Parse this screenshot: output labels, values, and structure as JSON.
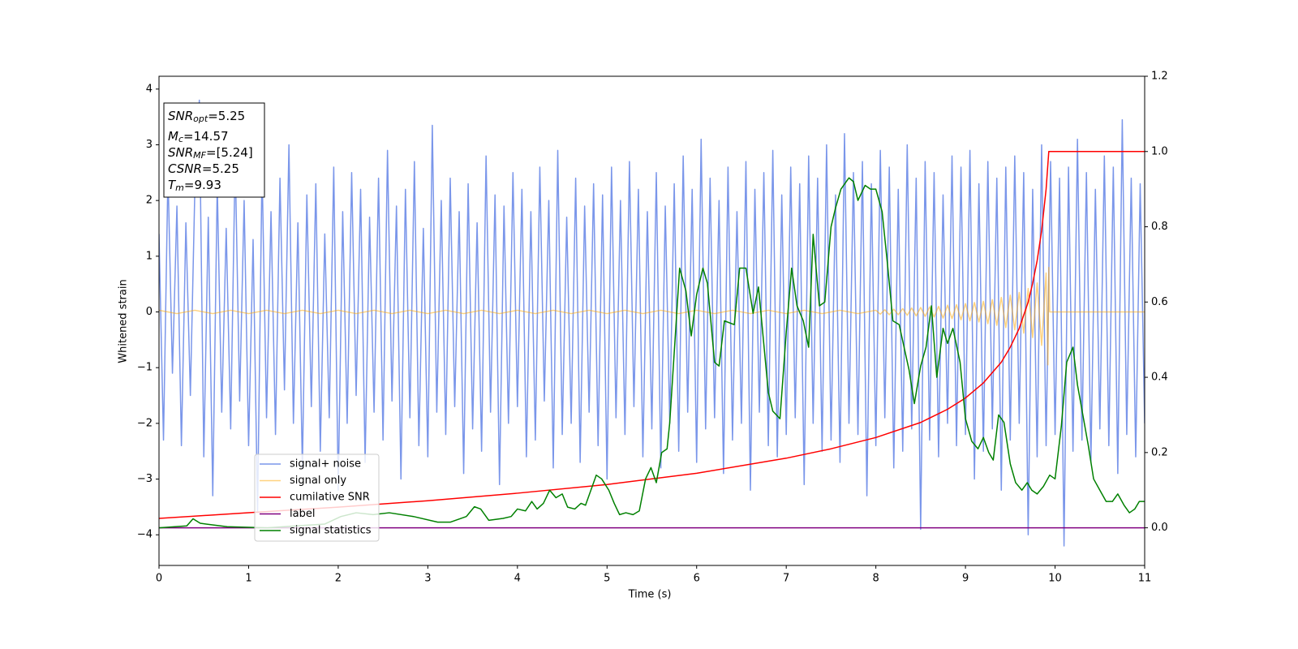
{
  "chart_data": {
    "type": "line",
    "xlabel": "Time (s)",
    "ylabel": "Whitened strain",
    "xlim": [
      0,
      11
    ],
    "xticks": [
      0,
      1,
      2,
      3,
      4,
      5,
      6,
      7,
      8,
      9,
      10,
      11
    ],
    "ylim": [
      -4.55,
      4.23
    ],
    "yticks": [
      {
        "value": -4,
        "label": "−4"
      },
      {
        "value": -3,
        "label": "−3"
      },
      {
        "value": -2,
        "label": "−2"
      },
      {
        "value": -1,
        "label": "−1"
      },
      0,
      1,
      2,
      3,
      4
    ],
    "y2lim": [
      -0.1,
      1.2
    ],
    "y2ticks": [
      {
        "value": 0,
        "label": "0.0"
      },
      0.2,
      0.4,
      0.6,
      0.8,
      {
        "value": 1,
        "label": "1.0"
      },
      1.2
    ],
    "legend": "lower left",
    "annotation": [
      {
        "text": "SNR",
        "sub": "opt",
        "rest": "=5.25"
      },
      {
        "text": "M",
        "sub": "c",
        "rest": "=14.57"
      },
      {
        "text": "SNR",
        "sub": "MF",
        "rest": "=[5.24]"
      },
      {
        "text": "CSNR",
        "rest": "=5.25"
      },
      {
        "text": "T",
        "sub": "m",
        "rest": "=9.93"
      }
    ],
    "series": [
      {
        "name": "signal+ noise",
        "color": "#4169e1",
        "alpha": 0.7,
        "x": [
          0,
          0.05,
          0.1,
          0.15,
          0.2,
          0.25,
          0.3,
          0.35,
          0.4,
          0.45,
          0.5,
          0.55,
          0.6,
          0.65,
          0.7,
          0.75,
          0.8,
          0.85,
          0.9,
          0.95,
          1,
          1.05,
          1.1,
          1.15,
          1.2,
          1.25,
          1.3,
          1.35,
          1.4,
          1.45,
          1.5,
          1.55,
          1.6,
          1.65,
          1.7,
          1.75,
          1.8,
          1.85,
          1.9,
          1.95,
          2,
          2.05,
          2.1,
          2.15,
          2.2,
          2.25,
          2.3,
          2.35,
          2.4,
          2.45,
          2.5,
          2.55,
          2.6,
          2.65,
          2.7,
          2.75,
          2.8,
          2.85,
          2.9,
          2.95,
          3,
          3.05,
          3.1,
          3.15,
          3.2,
          3.25,
          3.3,
          3.35,
          3.4,
          3.45,
          3.5,
          3.55,
          3.6,
          3.65,
          3.7,
          3.75,
          3.8,
          3.85,
          3.9,
          3.95,
          4,
          4.05,
          4.1,
          4.15,
          4.2,
          4.25,
          4.3,
          4.35,
          4.4,
          4.45,
          4.5,
          4.55,
          4.6,
          4.65,
          4.7,
          4.75,
          4.8,
          4.85,
          4.9,
          4.95,
          5,
          5.05,
          5.1,
          5.15,
          5.2,
          5.25,
          5.3,
          5.35,
          5.4,
          5.45,
          5.5,
          5.55,
          5.6,
          5.65,
          5.7,
          5.75,
          5.8,
          5.85,
          5.9,
          5.95,
          6,
          6.05,
          6.1,
          6.15,
          6.2,
          6.25,
          6.3,
          6.35,
          6.4,
          6.45,
          6.5,
          6.55,
          6.6,
          6.65,
          6.7,
          6.75,
          6.8,
          6.85,
          6.9,
          6.95,
          7,
          7.05,
          7.1,
          7.15,
          7.2,
          7.25,
          7.3,
          7.35,
          7.4,
          7.45,
          7.5,
          7.55,
          7.6,
          7.65,
          7.7,
          7.75,
          7.8,
          7.85,
          7.9,
          7.95,
          8,
          8.05,
          8.1,
          8.15,
          8.2,
          8.25,
          8.3,
          8.35,
          8.4,
          8.45,
          8.5,
          8.55,
          8.6,
          8.65,
          8.7,
          8.75,
          8.8,
          8.85,
          8.9,
          8.95,
          9,
          9.05,
          9.1,
          9.15,
          9.2,
          9.25,
          9.3,
          9.35,
          9.4,
          9.45,
          9.5,
          9.55,
          9.6,
          9.65,
          9.7,
          9.75,
          9.8,
          9.85,
          9.9,
          9.95,
          10,
          10.05,
          10.1,
          10.15,
          10.2,
          10.25,
          10.3,
          10.35,
          10.4,
          10.45,
          10.5,
          10.55,
          10.6,
          10.65,
          10.7,
          10.75,
          10.8,
          10.85,
          10.9,
          10.95,
          11
        ],
        "values": [
          1.4,
          -2.3,
          2.5,
          -1.1,
          1.9,
          -2.4,
          1.6,
          -1.5,
          2.2,
          3.8,
          -2.6,
          1.7,
          -3.3,
          2.3,
          -1.8,
          1.5,
          -2.1,
          2.8,
          -1.6,
          2.0,
          -2.4,
          1.3,
          -3.6,
          2.6,
          -1.9,
          1.8,
          -2.2,
          2.4,
          -1.4,
          3.0,
          -2.0,
          1.6,
          -2.8,
          2.1,
          -1.7,
          2.3,
          -2.5,
          1.4,
          -1.9,
          2.6,
          -3.2,
          1.8,
          -2.0,
          2.5,
          -1.5,
          2.2,
          -2.7,
          1.7,
          -1.8,
          2.4,
          -2.3,
          2.9,
          -1.6,
          1.9,
          -3.0,
          2.2,
          -1.9,
          2.7,
          -2.4,
          1.5,
          -2.6,
          3.35,
          -1.8,
          2.0,
          -2.2,
          2.4,
          -1.7,
          1.8,
          -2.9,
          2.3,
          -2.1,
          1.6,
          -2.5,
          2.8,
          -1.8,
          2.1,
          -3.1,
          1.9,
          -2.0,
          2.5,
          -1.7,
          2.2,
          -2.6,
          1.8,
          -2.3,
          2.6,
          -1.6,
          2.0,
          -2.8,
          2.9,
          -2.2,
          1.7,
          -2.0,
          2.4,
          -2.7,
          1.9,
          -1.8,
          2.3,
          -2.4,
          2.1,
          -3.0,
          2.6,
          -1.9,
          2.0,
          -2.2,
          2.7,
          -1.7,
          2.2,
          -2.6,
          1.8,
          -2.1,
          2.5,
          -2.8,
          1.9,
          -2.0,
          2.3,
          -2.5,
          2.8,
          -1.8,
          2.2,
          -2.7,
          3.1,
          -2.1,
          2.4,
          -1.9,
          2.0,
          -2.9,
          2.6,
          -2.3,
          1.8,
          -2.0,
          2.7,
          -3.2,
          2.2,
          -1.8,
          2.5,
          -2.4,
          2.9,
          -2.6,
          2.1,
          -2.2,
          2.6,
          -1.9,
          2.3,
          -3.1,
          2.8,
          -2.0,
          2.4,
          -2.5,
          3.0,
          -2.3,
          2.1,
          -2.7,
          3.2,
          -2.0,
          2.5,
          -2.2,
          2.7,
          -3.3,
          2.3,
          -2.4,
          2.9,
          -1.9,
          2.6,
          -2.8,
          2.2,
          -2.5,
          3.0,
          -2.1,
          2.4,
          -3.9,
          2.7,
          -2.3,
          2.5,
          -2.6,
          2.1,
          -2.0,
          2.8,
          -2.4,
          2.6,
          -2.2,
          2.9,
          -3.0,
          2.3,
          -2.5,
          2.7,
          -2.1,
          2.4,
          -3.2,
          2.6,
          -2.3,
          2.8,
          -2.0,
          2.5,
          -4.0,
          2.2,
          -2.6,
          3.0,
          -2.4,
          2.7,
          -2.2,
          2.4,
          -4.2,
          2.6,
          -2.5,
          3.1,
          -2.3,
          2.5,
          -2.7,
          2.2,
          -2.1,
          2.8,
          -2.4,
          2.6,
          -2.9,
          3.45,
          -2.2,
          2.4,
          -2.6,
          2.3,
          -2.0
        ]
      },
      {
        "name": "signal only",
        "color": "orange",
        "alpha": 0.5,
        "x": [
          0,
          0.2,
          0.4,
          0.6,
          0.8,
          1,
          1.2,
          1.4,
          1.6,
          1.8,
          2,
          2.2,
          2.4,
          2.6,
          2.8,
          3,
          3.2,
          3.4,
          3.6,
          3.8,
          4,
          4.2,
          4.4,
          4.6,
          4.8,
          5,
          5.2,
          5.4,
          5.6,
          5.8,
          6,
          6.2,
          6.4,
          6.6,
          6.8,
          7,
          7.2,
          7.4,
          7.6,
          7.8,
          8,
          8.05,
          8.1,
          8.15,
          8.2,
          8.25,
          8.3,
          8.35,
          8.4,
          8.45,
          8.5,
          8.55,
          8.6,
          8.65,
          8.7,
          8.75,
          8.8,
          8.85,
          8.9,
          8.95,
          9,
          9.05,
          9.1,
          9.15,
          9.2,
          9.25,
          9.3,
          9.35,
          9.4,
          9.45,
          9.5,
          9.55,
          9.6,
          9.65,
          9.7,
          9.75,
          9.8,
          9.85,
          9.9,
          9.92,
          9.93,
          9.94,
          11
        ],
        "values": [
          0.03,
          -0.03,
          0.03,
          -0.03,
          0.03,
          -0.03,
          0.03,
          -0.03,
          0.03,
          -0.03,
          0.03,
          -0.03,
          0.03,
          -0.03,
          0.03,
          -0.03,
          0.03,
          -0.03,
          0.03,
          -0.03,
          0.03,
          -0.03,
          0.03,
          -0.03,
          0.03,
          -0.03,
          0.03,
          -0.03,
          0.03,
          -0.03,
          0.03,
          -0.03,
          0.03,
          -0.03,
          0.03,
          -0.03,
          0.03,
          -0.03,
          0.03,
          -0.03,
          0.03,
          -0.04,
          0.04,
          -0.05,
          0.05,
          -0.05,
          0.06,
          -0.06,
          0.07,
          -0.07,
          0.08,
          -0.08,
          0.09,
          -0.09,
          0.1,
          -0.11,
          0.12,
          -0.12,
          0.13,
          -0.14,
          0.15,
          -0.16,
          0.17,
          -0.18,
          0.19,
          -0.21,
          0.22,
          -0.24,
          0.26,
          -0.28,
          0.3,
          -0.32,
          0.35,
          -0.38,
          0.42,
          -0.46,
          0.52,
          -0.6,
          0.7,
          -0.95,
          0.8,
          0,
          0
        ]
      },
      {
        "name": "cumilative SNR",
        "color": "red",
        "axis": "y2",
        "x": [
          0,
          1,
          2,
          3,
          4,
          5,
          6,
          7,
          7.5,
          8,
          8.5,
          8.8,
          9,
          9.2,
          9.4,
          9.5,
          9.6,
          9.7,
          9.75,
          9.8,
          9.85,
          9.9,
          9.93,
          11
        ],
        "values": [
          0.025,
          0.04,
          0.055,
          0.072,
          0.092,
          0.115,
          0.145,
          0.185,
          0.21,
          0.24,
          0.28,
          0.315,
          0.345,
          0.385,
          0.44,
          0.48,
          0.53,
          0.6,
          0.65,
          0.71,
          0.79,
          0.9,
          1.0,
          1.0
        ]
      },
      {
        "name": "label",
        "color": "purple",
        "axis": "y2",
        "x": [
          0,
          11
        ],
        "values": [
          0,
          0
        ]
      },
      {
        "name": "signal statistics",
        "color": "green",
        "axis": "y2",
        "x": [
          0,
          0.31,
          0.38,
          0.46,
          0.76,
          1.21,
          1.85,
          2.03,
          2.2,
          2.39,
          2.57,
          2.84,
          3.11,
          3.25,
          3.43,
          3.52,
          3.59,
          3.68,
          3.84,
          3.93,
          4.0,
          4.09,
          4.16,
          4.22,
          4.29,
          4.36,
          4.43,
          4.5,
          4.56,
          4.64,
          4.71,
          4.76,
          4.88,
          4.94,
          5.02,
          5.08,
          5.14,
          5.21,
          5.29,
          5.36,
          5.43,
          5.49,
          5.55,
          5.61,
          5.67,
          5.7,
          5.81,
          5.88,
          5.94,
          6.0,
          6.07,
          6.12,
          6.2,
          6.25,
          6.31,
          6.42,
          6.48,
          6.55,
          6.63,
          6.69,
          6.8,
          6.85,
          6.93,
          7.0,
          7.06,
          7.12,
          7.19,
          7.25,
          7.3,
          7.37,
          7.43,
          7.5,
          7.55,
          7.61,
          7.7,
          7.75,
          7.8,
          7.88,
          7.94,
          8.0,
          8.07,
          8.13,
          8.19,
          8.26,
          8.37,
          8.43,
          8.5,
          8.56,
          8.62,
          8.68,
          8.75,
          8.8,
          8.86,
          8.94,
          9.0,
          9.07,
          9.14,
          9.2,
          9.26,
          9.31,
          9.37,
          9.43,
          9.5,
          9.56,
          9.63,
          9.69,
          9.74,
          9.8,
          9.87,
          9.94,
          10.0,
          10.07,
          10.13,
          10.2,
          10.25,
          10.31,
          10.37,
          10.43,
          10.5,
          10.57,
          10.64,
          10.7,
          10.77,
          10.83,
          10.89,
          10.94,
          11.0
        ],
        "values": [
          0,
          0.005,
          0.024,
          0.012,
          0.003,
          0,
          0.01,
          0.03,
          0.04,
          0.035,
          0.04,
          0.03,
          0.015,
          0.015,
          0.03,
          0.056,
          0.05,
          0.02,
          0.025,
          0.03,
          0.05,
          0.045,
          0.07,
          0.05,
          0.065,
          0.1,
          0.08,
          0.09,
          0.055,
          0.05,
          0.065,
          0.06,
          0.14,
          0.13,
          0.1,
          0.065,
          0.035,
          0.04,
          0.035,
          0.045,
          0.13,
          0.16,
          0.12,
          0.2,
          0.21,
          0.28,
          0.69,
          0.63,
          0.51,
          0.62,
          0.69,
          0.65,
          0.44,
          0.43,
          0.55,
          0.54,
          0.69,
          0.69,
          0.57,
          0.64,
          0.36,
          0.31,
          0.29,
          0.52,
          0.69,
          0.59,
          0.55,
          0.48,
          0.78,
          0.59,
          0.6,
          0.8,
          0.85,
          0.9,
          0.93,
          0.92,
          0.87,
          0.91,
          0.9,
          0.9,
          0.84,
          0.7,
          0.55,
          0.54,
          0.42,
          0.33,
          0.43,
          0.48,
          0.59,
          0.4,
          0.53,
          0.49,
          0.53,
          0.44,
          0.29,
          0.23,
          0.21,
          0.24,
          0.2,
          0.18,
          0.3,
          0.28,
          0.17,
          0.12,
          0.1,
          0.12,
          0.1,
          0.09,
          0.11,
          0.14,
          0.13,
          0.27,
          0.44,
          0.48,
          0.38,
          0.3,
          0.22,
          0.13,
          0.1,
          0.07,
          0.07,
          0.09,
          0.06,
          0.04,
          0.05,
          0.07,
          0.07
        ]
      }
    ]
  }
}
